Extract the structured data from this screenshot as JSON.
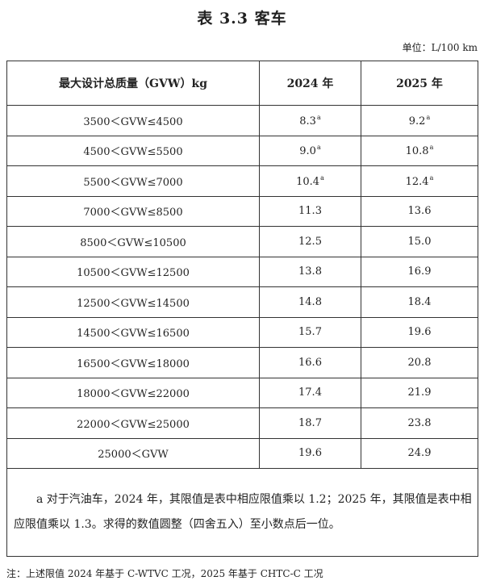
{
  "header": {
    "title": "表 3.3 客车",
    "unit": "单位：L/100 km"
  },
  "table": {
    "columns": [
      "最大设计总质量（GVW）kg",
      "2024 年",
      "2025 年"
    ],
    "rows": [
      [
        {
          "text": "3500＜GVW≤4500"
        },
        {
          "text": "8.3",
          "note": "a"
        },
        {
          "text": "9.2",
          "note": "a"
        }
      ],
      [
        {
          "text": "4500＜GVW≤5500"
        },
        {
          "text": "9.0",
          "note": "a"
        },
        {
          "text": "10.8",
          "note": "a"
        }
      ],
      [
        {
          "text": "5500＜GVW≤7000"
        },
        {
          "text": "10.4",
          "note": "a"
        },
        {
          "text": "12.4",
          "note": "a"
        }
      ],
      [
        {
          "text": "7000＜GVW≤8500"
        },
        {
          "text": "11.3"
        },
        {
          "text": "13.6"
        }
      ],
      [
        {
          "text": "8500＜GVW≤10500"
        },
        {
          "text": "12.5"
        },
        {
          "text": "15.0"
        }
      ],
      [
        {
          "text": "10500＜GVW≤12500"
        },
        {
          "text": "13.8"
        },
        {
          "text": "16.9"
        }
      ],
      [
        {
          "text": "12500＜GVW≤14500"
        },
        {
          "text": "14.8"
        },
        {
          "text": "18.4"
        }
      ],
      [
        {
          "text": "14500＜GVW≤16500"
        },
        {
          "text": "15.7"
        },
        {
          "text": "19.6"
        }
      ],
      [
        {
          "text": "16500＜GVW≤18000"
        },
        {
          "text": "16.6"
        },
        {
          "text": "20.8"
        }
      ],
      [
        {
          "text": "18000＜GVW≤22000"
        },
        {
          "text": "17.4"
        },
        {
          "text": "21.9"
        }
      ],
      [
        {
          "text": "22000＜GVW≤25000"
        },
        {
          "text": "18.7"
        },
        {
          "text": "23.8"
        }
      ],
      [
        {
          "text": "25000＜GVW"
        },
        {
          "text": "19.6"
        },
        {
          "text": "24.9"
        }
      ]
    ],
    "footnote": "　　a 对于汽油车，2024 年，其限值是表中相应限值乘以 1.2；2025 年，其限值是表中相应限值乘以 1.3。求得的数值圆整（四舍五入）至小数点后一位。"
  },
  "note": "注：上述限值 2024 年基于 C-WTVC 工况，2025 年基于 CHTC-C 工况"
}
